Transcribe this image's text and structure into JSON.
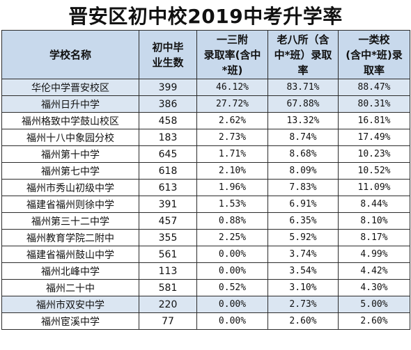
{
  "title": "晋安区初中校2019中考升学率",
  "columns": [
    "学校名称",
    "初中毕\n业生数",
    "一三附\n录取率(含中\n*班)",
    "老八所（含\n中*班）录取\n率",
    "一类校\n(含中*班)录\n取率"
  ],
  "rows": [
    {
      "name": "华伦中学晋安校区",
      "count": "399",
      "r1": "46.12%",
      "r2": "83.71%",
      "r3": "88.47%",
      "highlight": true
    },
    {
      "name": "福州日升中学",
      "count": "386",
      "r1": "27.72%",
      "r2": "67.88%",
      "r3": "80.31%",
      "highlight": true
    },
    {
      "name": "福州格致中学鼓山校区",
      "count": "458",
      "r1": "2.62%",
      "r2": "13.32%",
      "r3": "16.81%",
      "highlight": false
    },
    {
      "name": "福州十八中象园分校",
      "count": "183",
      "r1": "2.73%",
      "r2": "8.74%",
      "r3": "17.49%",
      "highlight": false
    },
    {
      "name": "福州第十中学",
      "count": "645",
      "r1": "1.71%",
      "r2": "8.68%",
      "r3": "10.23%",
      "highlight": false
    },
    {
      "name": "福州第七中学",
      "count": "618",
      "r1": "2.10%",
      "r2": "8.09%",
      "r3": "10.52%",
      "highlight": false
    },
    {
      "name": "福州市秀山初级中学",
      "count": "613",
      "r1": "1.96%",
      "r2": "7.83%",
      "r3": "11.09%",
      "highlight": false
    },
    {
      "name": "福建省福州则徐中学",
      "count": "391",
      "r1": "1.53%",
      "r2": "6.91%",
      "r3": "8.44%",
      "highlight": false
    },
    {
      "name": "福州第三十二中学",
      "count": "457",
      "r1": "0.88%",
      "r2": "6.35%",
      "r3": "8.10%",
      "highlight": false
    },
    {
      "name": "福州教育学院二附中",
      "count": "355",
      "r1": "2.25%",
      "r2": "5.92%",
      "r3": "8.17%",
      "highlight": false
    },
    {
      "name": "福建省福州鼓山中学",
      "count": "561",
      "r1": "0.00%",
      "r2": "3.74%",
      "r3": "4.99%",
      "highlight": false
    },
    {
      "name": "福州北峰中学",
      "count": "113",
      "r1": "0.00%",
      "r2": "3.54%",
      "r3": "4.42%",
      "highlight": false
    },
    {
      "name": "福州二十中",
      "count": "581",
      "r1": "0.52%",
      "r2": "3.10%",
      "r3": "4.30%",
      "highlight": false
    },
    {
      "name": "福州市双安中学",
      "count": "220",
      "r1": "0.00%",
      "r2": "2.73%",
      "r3": "5.00%",
      "highlight": true
    },
    {
      "name": "福州宦溪中学",
      "count": "77",
      "r1": "0.00%",
      "r2": "2.60%",
      "r3": "2.60%",
      "highlight": false
    }
  ],
  "colors": {
    "header_bg": "#c8d9ec",
    "highlight_row_bg": "#dbe6f2",
    "border": "#2b2b2b"
  }
}
